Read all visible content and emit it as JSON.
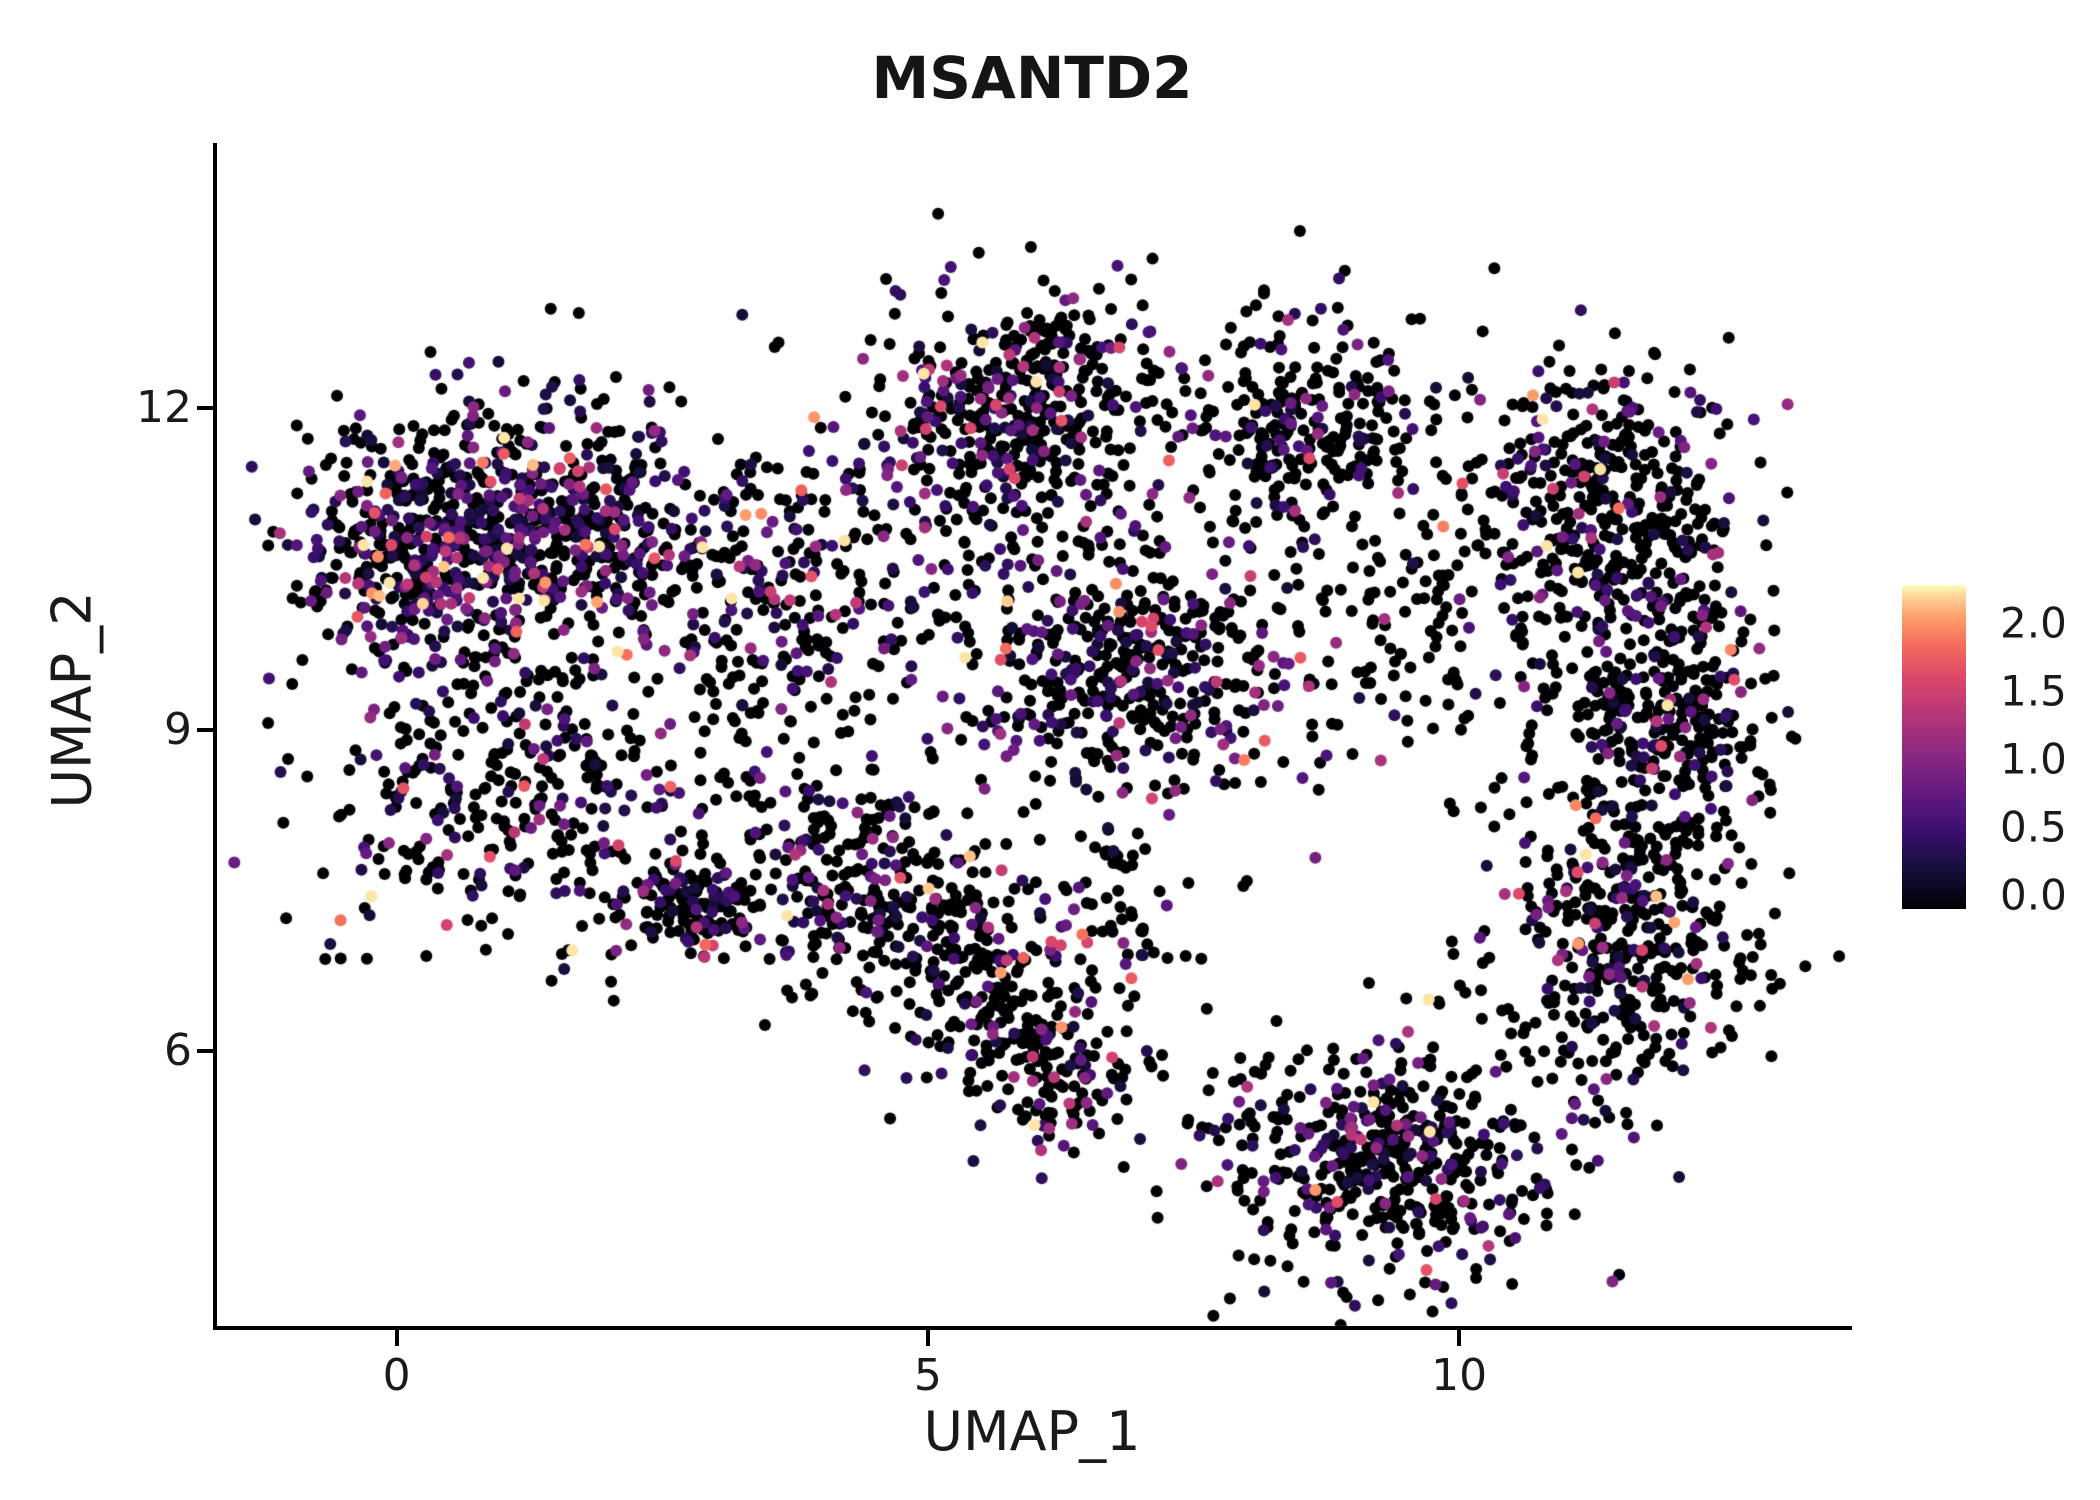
{
  "page": {
    "background": "#ffffff"
  },
  "chart_data": {
    "type": "scatter",
    "title": "MSANTD2",
    "xlabel": "UMAP_1",
    "ylabel": "UMAP_2",
    "xlim": [
      -1.7,
      13.66
    ],
    "ylim": [
      3.44,
      14.47
    ],
    "x_ticks": [
      {
        "value": 0,
        "label": "0"
      },
      {
        "value": 5,
        "label": "5"
      },
      {
        "value": 10,
        "label": "10"
      }
    ],
    "y_ticks": [
      {
        "value": 12,
        "label": "12"
      },
      {
        "value": 9,
        "label": "9"
      },
      {
        "value": 6,
        "label": "6"
      }
    ],
    "legend": {
      "ticks": [
        {
          "value": 2.0,
          "label": "2.0"
        },
        {
          "value": 1.5,
          "label": "1.5"
        },
        {
          "value": 1.0,
          "label": "1.0"
        },
        {
          "value": 0.5,
          "label": "0.5"
        },
        {
          "value": 0.0,
          "label": "0.0"
        }
      ],
      "vmin": 0.0,
      "vmax": 2.3
    },
    "colormap": {
      "name": "magma",
      "stops": [
        [
          0.0,
          "#000004"
        ],
        [
          0.12,
          "#150e38"
        ],
        [
          0.24,
          "#3b0f70"
        ],
        [
          0.36,
          "#641a80"
        ],
        [
          0.48,
          "#8c2981"
        ],
        [
          0.6,
          "#b5367a"
        ],
        [
          0.72,
          "#de4968"
        ],
        [
          0.82,
          "#f66e5c"
        ],
        [
          0.9,
          "#fe9f6d"
        ],
        [
          0.96,
          "#fecf92"
        ],
        [
          1.0,
          "#fcfdbf"
        ]
      ]
    },
    "point_radius": 6,
    "seed": 42,
    "expr_floor": 0.25,
    "expr_cap": 2.25,
    "clusters": [
      {
        "name": "left-main",
        "cx": 1.25,
        "cy": 10.85,
        "sx": 0.95,
        "sy": 0.6,
        "n": 780,
        "pos_frac": 0.45,
        "expr_scale": 0.5
      },
      {
        "name": "left-edge",
        "cx": -0.05,
        "cy": 10.55,
        "sx": 0.45,
        "sy": 0.55,
        "n": 180,
        "pos_frac": 0.5,
        "expr_scale": 0.5
      },
      {
        "name": "left-lower",
        "cx": 1.0,
        "cy": 8.4,
        "sx": 0.85,
        "sy": 0.7,
        "n": 320,
        "pos_frac": 0.3,
        "expr_scale": 0.5
      },
      {
        "name": "left-knot",
        "cx": 2.8,
        "cy": 7.35,
        "sx": 0.33,
        "sy": 0.22,
        "n": 130,
        "pos_frac": 0.35,
        "expr_scale": 0.5
      },
      {
        "name": "mid-left-bridge",
        "cx": 3.9,
        "cy": 10.3,
        "sx": 0.8,
        "sy": 0.6,
        "n": 190,
        "pos_frac": 0.3,
        "expr_scale": 0.5
      },
      {
        "name": "left-field",
        "cx": 3.3,
        "cy": 8.8,
        "sx": 0.9,
        "sy": 0.8,
        "n": 140,
        "pos_frac": 0.3,
        "expr_scale": 0.5
      },
      {
        "name": "band-upper",
        "cx": 4.35,
        "cy": 7.5,
        "sx": 0.5,
        "sy": 0.55,
        "n": 240,
        "pos_frac": 0.32,
        "expr_scale": 0.55
      },
      {
        "name": "band-mid",
        "cx": 5.5,
        "cy": 6.6,
        "sx": 0.45,
        "sy": 0.6,
        "n": 200,
        "pos_frac": 0.3,
        "expr_scale": 0.55
      },
      {
        "name": "band-tail",
        "cx": 6.3,
        "cy": 5.75,
        "sx": 0.35,
        "sy": 0.4,
        "n": 110,
        "pos_frac": 0.28,
        "expr_scale": 0.6
      },
      {
        "name": "top-mid",
        "cx": 5.9,
        "cy": 11.9,
        "sx": 0.8,
        "sy": 0.62,
        "n": 520,
        "pos_frac": 0.28,
        "expr_scale": 0.5
      },
      {
        "name": "center",
        "cx": 6.9,
        "cy": 9.6,
        "sx": 0.85,
        "sy": 0.62,
        "n": 480,
        "pos_frac": 0.33,
        "expr_scale": 0.5
      },
      {
        "name": "center-south",
        "cx": 6.8,
        "cy": 7.3,
        "sx": 0.5,
        "sy": 0.55,
        "n": 70,
        "pos_frac": 0.25,
        "expr_scale": 0.5
      },
      {
        "name": "top-right",
        "cx": 8.6,
        "cy": 11.9,
        "sx": 0.6,
        "sy": 0.5,
        "n": 270,
        "pos_frac": 0.22,
        "expr_scale": 0.5
      },
      {
        "name": "gap-sparse",
        "cx": 9.7,
        "cy": 10.1,
        "sx": 0.7,
        "sy": 0.65,
        "n": 110,
        "pos_frac": 0.15,
        "expr_scale": 0.5
      },
      {
        "name": "right-upper",
        "cx": 11.3,
        "cy": 11.2,
        "sx": 0.65,
        "sy": 0.65,
        "n": 380,
        "pos_frac": 0.22,
        "expr_scale": 0.5
      },
      {
        "name": "right-mid",
        "cx": 11.9,
        "cy": 9.2,
        "sx": 0.55,
        "sy": 0.75,
        "n": 420,
        "pos_frac": 0.22,
        "expr_scale": 0.5
      },
      {
        "name": "right-lower",
        "cx": 11.5,
        "cy": 7.0,
        "sx": 0.65,
        "sy": 0.75,
        "n": 400,
        "pos_frac": 0.22,
        "expr_scale": 0.5
      },
      {
        "name": "bottom-right",
        "cx": 9.3,
        "cy": 5.0,
        "sx": 0.85,
        "sy": 0.55,
        "n": 500,
        "pos_frac": 0.25,
        "expr_scale": 0.5
      }
    ]
  }
}
